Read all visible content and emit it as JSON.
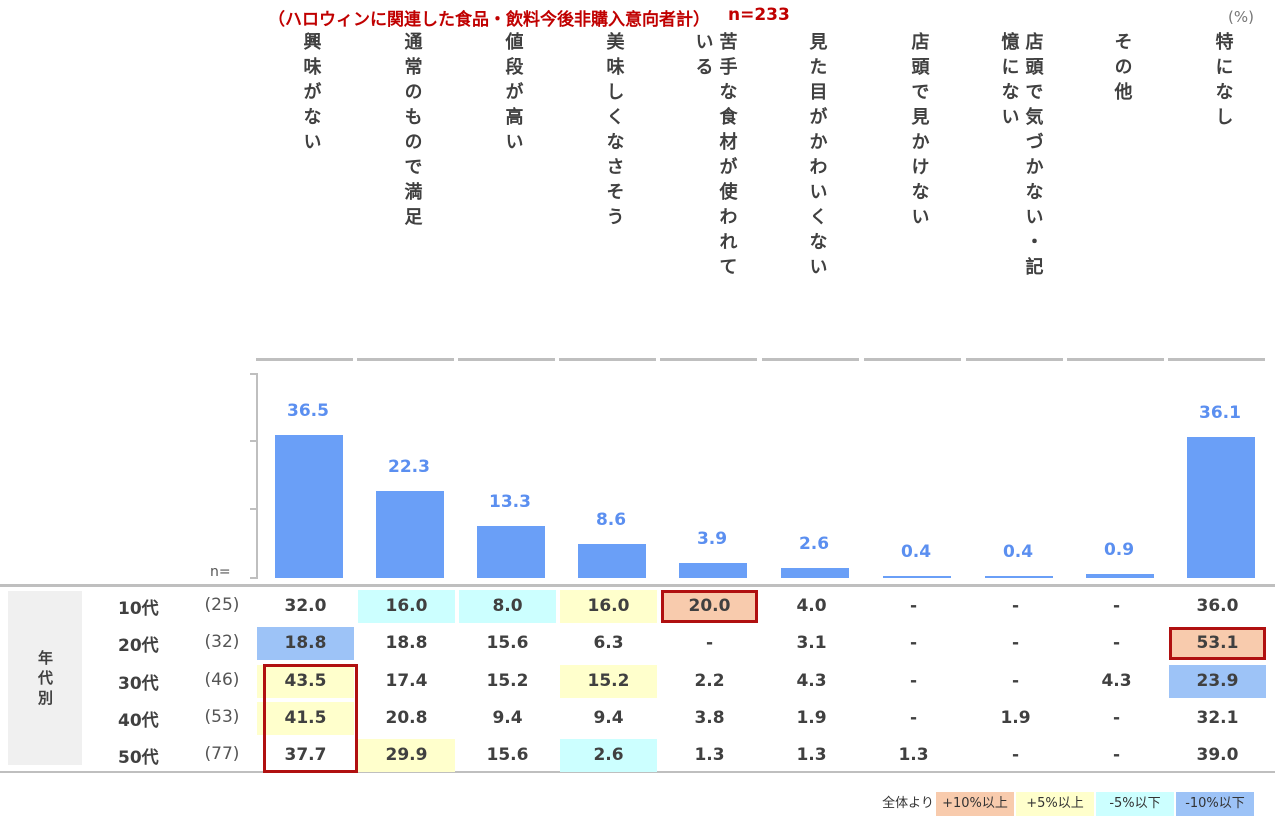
{
  "header": {
    "title": "（ハロウィンに関連した食品・飲料今後非購入意向者計）",
    "n_label": "n=233",
    "unit": "(%)"
  },
  "columns": [
    {
      "lines": [
        "興味がない"
      ]
    },
    {
      "lines": [
        "通常のもので満足"
      ]
    },
    {
      "lines": [
        "値段が高い"
      ]
    },
    {
      "lines": [
        "美味しくなさそう"
      ]
    },
    {
      "lines": [
        "苦手な食材が使われて",
        "いる"
      ]
    },
    {
      "lines": [
        "見た目がかわいくない"
      ]
    },
    {
      "lines": [
        "店頭で見かけない"
      ]
    },
    {
      "lines": [
        "店頭で気づかない・記",
        "憶にない"
      ]
    },
    {
      "lines": [
        "その他"
      ]
    },
    {
      "lines": [
        "特になし"
      ]
    }
  ],
  "chart_data": {
    "type": "bar",
    "categories": [
      "興味がない",
      "通常のもので満足",
      "値段が高い",
      "美味しくなさそう",
      "苦手な食材が使われている",
      "見た目がかわいくない",
      "店頭で見かけない",
      "店頭で気づかない・記憶にない",
      "その他",
      "特になし"
    ],
    "values": [
      36.5,
      22.3,
      13.3,
      8.6,
      3.9,
      2.6,
      0.4,
      0.4,
      0.9,
      36.1
    ],
    "value_labels": [
      "36.5",
      "22.3",
      "13.3",
      "8.6",
      "3.9",
      "2.6",
      "0.4",
      "0.4",
      "0.9",
      "36.1"
    ],
    "ylim": [
      0,
      60
    ],
    "bar_color": "#6a9ff7",
    "label_color": "#5b8ff0"
  },
  "table": {
    "group_label": "年代別",
    "n_header": "n=",
    "rows": [
      {
        "label": "10代",
        "n": "(25)",
        "cells": [
          "32.0",
          "16.0",
          "8.0",
          "16.0",
          "20.0",
          "4.0",
          "-",
          "-",
          "-",
          "36.0"
        ],
        "colors": [
          "",
          "c-cyan",
          "c-cyan",
          "c-yellow",
          "c-orange",
          "",
          "",
          "",
          "",
          ""
        ],
        "highlight": [
          false,
          false,
          false,
          false,
          true,
          false,
          false,
          false,
          false,
          false
        ]
      },
      {
        "label": "20代",
        "n": "(32)",
        "cells": [
          "18.8",
          "18.8",
          "15.6",
          "6.3",
          "-",
          "3.1",
          "-",
          "-",
          "-",
          "53.1"
        ],
        "colors": [
          "c-blue",
          "",
          "",
          "",
          "",
          "",
          "",
          "",
          "",
          "c-orange"
        ],
        "highlight": [
          false,
          false,
          false,
          false,
          false,
          false,
          false,
          false,
          false,
          true
        ]
      },
      {
        "label": "30代",
        "n": "(46)",
        "cells": [
          "43.5",
          "17.4",
          "15.2",
          "15.2",
          "2.2",
          "4.3",
          "-",
          "-",
          "4.3",
          "23.9"
        ],
        "colors": [
          "c-yellow",
          "",
          "",
          "c-yellow",
          "",
          "",
          "",
          "",
          "",
          "c-blue"
        ],
        "highlight": [
          false,
          false,
          false,
          false,
          false,
          false,
          false,
          false,
          false,
          false
        ]
      },
      {
        "label": "40代",
        "n": "(53)",
        "cells": [
          "41.5",
          "20.8",
          "9.4",
          "9.4",
          "3.8",
          "1.9",
          "-",
          "1.9",
          "-",
          "32.1"
        ],
        "colors": [
          "c-yellow",
          "",
          "",
          "",
          "",
          "",
          "",
          "",
          "",
          ""
        ],
        "highlight": [
          false,
          false,
          false,
          false,
          false,
          false,
          false,
          false,
          false,
          false
        ]
      },
      {
        "label": "50代",
        "n": "(77)",
        "cells": [
          "37.7",
          "29.9",
          "15.6",
          "2.6",
          "1.3",
          "1.3",
          "1.3",
          "-",
          "-",
          "39.0"
        ],
        "colors": [
          "",
          "c-yellow",
          "",
          "c-cyan",
          "",
          "",
          "",
          "",
          "",
          ""
        ],
        "highlight": [
          false,
          false,
          false,
          false,
          false,
          false,
          false,
          false,
          false,
          false
        ]
      }
    ],
    "first_col_box_rows": [
      2,
      4
    ]
  },
  "legend": {
    "prefix": "全体より",
    "items": [
      {
        "label": "+10%以上",
        "color": "#f8cbad"
      },
      {
        "label": "+5%以上",
        "color": "#ffffcc"
      },
      {
        "label": "-5%以下",
        "color": "#ccffff"
      },
      {
        "label": "-10%以下",
        "color": "#9dc3f7"
      }
    ]
  }
}
